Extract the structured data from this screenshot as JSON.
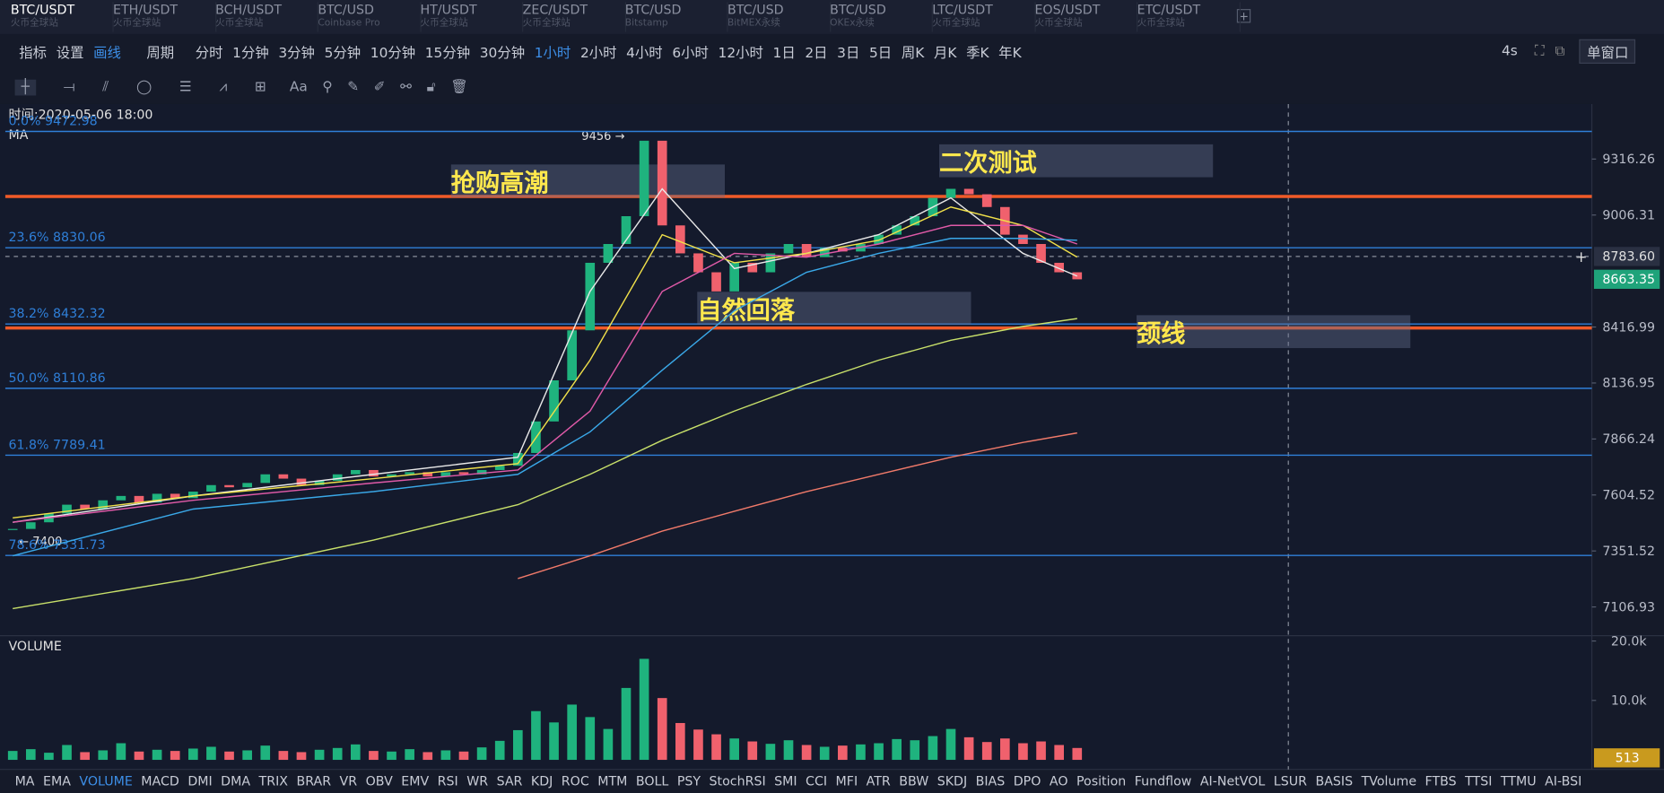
{
  "tabs": [
    {
      "symbol": "BTC/USDT",
      "exchange": "火币全球站"
    },
    {
      "symbol": "ETH/USDT",
      "exchange": "火币全球站"
    },
    {
      "symbol": "BCH/USDT",
      "exchange": "火币全球站"
    },
    {
      "symbol": "BTC/USD",
      "exchange": "Coinbase Pro"
    },
    {
      "symbol": "HT/USDT",
      "exchange": "火币全球站"
    },
    {
      "symbol": "ZEC/USDT",
      "exchange": "火币全球站"
    },
    {
      "symbol": "BTC/USD",
      "exchange": "Bitstamp"
    },
    {
      "symbol": "BTC/USD",
      "exchange": "BitMEX永续"
    },
    {
      "symbol": "BTC/USD",
      "exchange": "OKEx永续"
    },
    {
      "symbol": "LTC/USDT",
      "exchange": "火币全球站"
    },
    {
      "symbol": "EOS/USDT",
      "exchange": "火币全球站"
    },
    {
      "symbol": "ETC/USDT",
      "exchange": "火币全球站"
    }
  ],
  "toolbar": {
    "items": [
      "指标",
      "设置",
      "画线"
    ],
    "period_label": "周期",
    "periods": [
      "分时",
      "1分钟",
      "3分钟",
      "5分钟",
      "10分钟",
      "15分钟",
      "30分钟",
      "1小时",
      "2小时",
      "4小时",
      "6小时",
      "12小时",
      "1日",
      "2日",
      "3日",
      "5日",
      "周K",
      "月K",
      "季K",
      "年K"
    ],
    "active_period": 7,
    "refresh": "4s",
    "window": "单窗口",
    "text_tool": "Aa"
  },
  "chart_data": {
    "type": "candlestick",
    "log": true,
    "time_label": "时间:2020-05-06 18:00",
    "ma_label": "MA",
    "close": [
      7450,
      7480,
      7520,
      7560,
      7540,
      7580,
      7600,
      7570,
      7610,
      7590,
      7620,
      7650,
      7640,
      7660,
      7700,
      7680,
      7650,
      7670,
      7700,
      7720,
      7690,
      7700,
      7710,
      7690,
      7710,
      7700,
      7720,
      7740,
      7800,
      7950,
      8150,
      8400,
      8750,
      8850,
      9000,
      9420,
      8950,
      8800,
      8700,
      8600,
      8750,
      8700,
      8800,
      8850,
      8780,
      8830,
      8810,
      8850,
      8900,
      8950,
      9000,
      9100,
      9150,
      9120,
      9050,
      8900,
      8850,
      8750,
      8700,
      8663
    ],
    "ylim": [
      6989,
      9619
    ],
    "yticks": [
      7106.93,
      7351.52,
      7604.52,
      7866.24,
      8136.95,
      8416.99,
      9006.31,
      9316.26
    ],
    "crosshair": {
      "value": 8783.6,
      "label": "8783.60"
    },
    "current_price": 8663.35,
    "high_label": "9456 →",
    "low_label": "← 7400",
    "fib_levels": [
      {
        "value": 9472.98,
        "label": "0.0% 9472.98"
      },
      {
        "value": 8830.06,
        "label": "23.6% 8830.06"
      },
      {
        "value": 8432.32,
        "label": "38.2% 8432.32"
      },
      {
        "value": 8110.86,
        "label": "50.0% 8110.86"
      },
      {
        "value": 7789.41,
        "label": "61.8% 7789.41"
      },
      {
        "value": 7331.73,
        "label": "78.6% 7331.73"
      }
    ],
    "fib_color": "#2f7fd8",
    "level_lines": [
      9108,
      8412
    ],
    "level_color": "#f05a28",
    "annotations": [
      "抢购高潮",
      "二次测试",
      "自然回落",
      "颈线"
    ],
    "ma_index": [
      0,
      10,
      20,
      28,
      32,
      36,
      40,
      44,
      48,
      52,
      56,
      59
    ],
    "ma_series": [
      {
        "color": "#e8e8e8",
        "values": [
          7480,
          7600,
          7700,
          7780,
          8600,
          9150,
          8720,
          8800,
          8900,
          9100,
          8800,
          8680
        ]
      },
      {
        "color": "#f0e04a",
        "values": [
          7500,
          7600,
          7680,
          7750,
          8250,
          8900,
          8750,
          8800,
          8870,
          9050,
          8950,
          8780
        ]
      },
      {
        "color": "#e05aa8",
        "values": [
          7480,
          7580,
          7660,
          7720,
          8000,
          8600,
          8800,
          8780,
          8850,
          8950,
          8950,
          8850
        ]
      },
      {
        "color": "#3aa8e8",
        "values": [
          7330,
          7540,
          7620,
          7700,
          7900,
          8200,
          8500,
          8700,
          8800,
          8880,
          8880,
          8870
        ]
      },
      {
        "color": "#c8e06a",
        "values": [
          7100,
          7230,
          7400,
          7560,
          7700,
          7860,
          8000,
          8130,
          8250,
          8350,
          8420,
          8460
        ]
      },
      {
        "color": "#f07a6a",
        "values": [
          null,
          null,
          null,
          7230,
          7330,
          7440,
          7530,
          7620,
          7700,
          7780,
          7850,
          7895
        ]
      }
    ],
    "up_color": "#1fb37e",
    "down_color": "#f0616d"
  },
  "volume": {
    "label": "VOLUME",
    "values": [
      1500,
      1800,
      1200,
      2500,
      1300,
      1600,
      2800,
      1400,
      1700,
      1500,
      1900,
      2200,
      1400,
      1600,
      2400,
      1500,
      1300,
      1700,
      2000,
      2600,
      1500,
      1400,
      1800,
      1300,
      1600,
      1400,
      2100,
      3200,
      5000,
      8200,
      6300,
      9300,
      7200,
      5200,
      12100,
      17000,
      10400,
      6200,
      5100,
      4300,
      3600,
      3100,
      2700,
      3300,
      2500,
      2200,
      2400,
      2600,
      2800,
      3500,
      3300,
      4000,
      5200,
      3800,
      3000,
      3600,
      2800,
      3100,
      2500,
      2000
    ],
    "ylim": [
      0,
      20000
    ],
    "yticks": [
      {
        "value": 10000,
        "label": "10.0k"
      },
      {
        "value": 20000,
        "label": "20.0k"
      }
    ],
    "current": 513
  },
  "indicators": [
    "MA",
    "EMA",
    "VOLUME",
    "MACD",
    "DMI",
    "DMA",
    "TRIX",
    "BRAR",
    "VR",
    "OBV",
    "EMV",
    "RSI",
    "WR",
    "SAR",
    "KDJ",
    "ROC",
    "MTM",
    "BOLL",
    "PSY",
    "StochRSI",
    "SMI",
    "CCI",
    "MFI",
    "ATR",
    "BBW",
    "SKDJ",
    "BIAS",
    "DPO",
    "AO",
    "Position",
    "Fundflow",
    "AI-NetVOL",
    "LSUR",
    "BASIS",
    "TVolume",
    "FTBS",
    "TTSI",
    "TTMU",
    "AI-BSI"
  ],
  "active_indicator": 2
}
